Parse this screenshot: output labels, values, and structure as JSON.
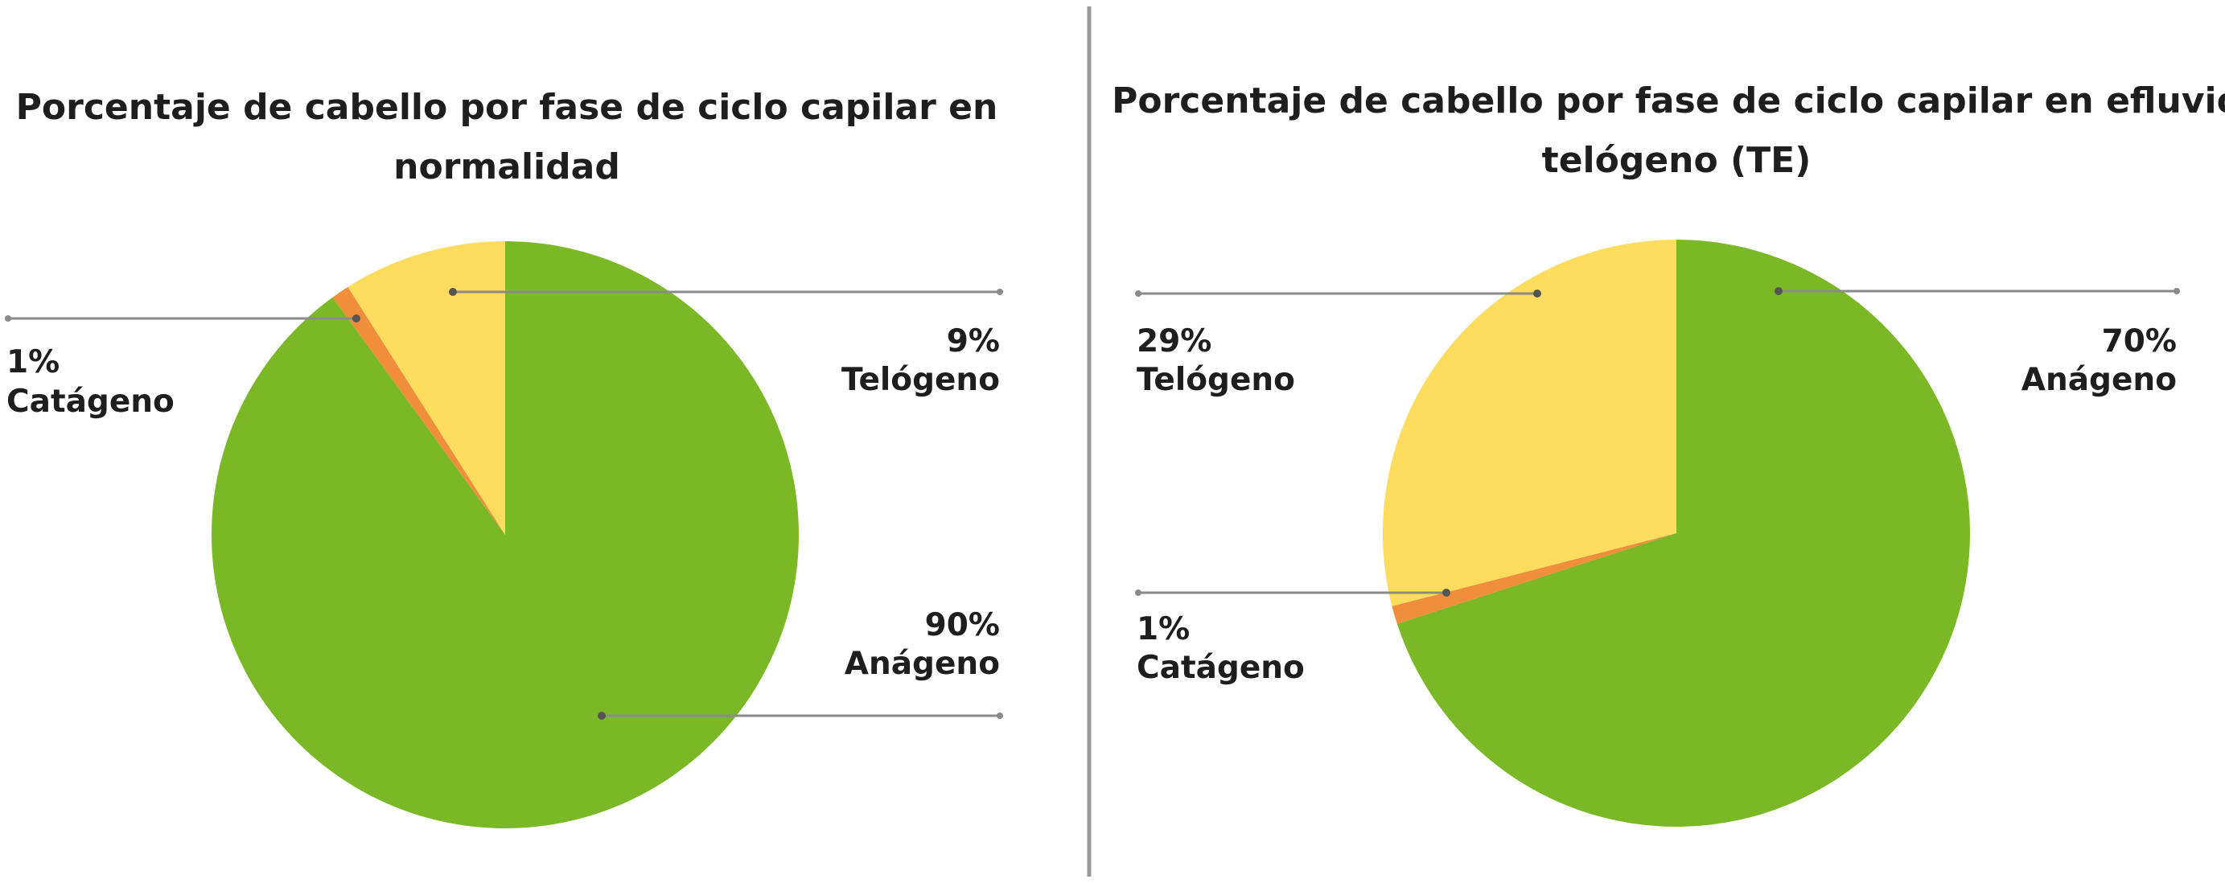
{
  "colors": {
    "anagen": "#7ab826",
    "catagen": "#f08e3c",
    "telogen": "#fedc5e",
    "leader": "#8a8a8a",
    "divider": "#999999",
    "text": "#1e1e1e"
  },
  "chart_data": [
    {
      "type": "pie",
      "title_lines": [
        "Porcentaje de cabello por fase de ciclo capilar en",
        "normalidad"
      ],
      "slices": [
        {
          "label": "Anágeno",
          "value": 90,
          "value_label": "90%",
          "color_key": "anagen"
        },
        {
          "label": "Catágeno",
          "value": 1,
          "value_label": "1%",
          "color_key": "catagen"
        },
        {
          "label": "Telógeno",
          "value": 9,
          "value_label": "9%",
          "color_key": "telogen"
        }
      ]
    },
    {
      "type": "pie",
      "title_lines": [
        "Porcentaje de cabello por fase de ciclo capilar en efluvio",
        "telógeno (TE)"
      ],
      "slices": [
        {
          "label": "Anágeno",
          "value": 70,
          "value_label": "70%",
          "color_key": "anagen"
        },
        {
          "label": "Catágeno",
          "value": 1,
          "value_label": "1%",
          "color_key": "catagen"
        },
        {
          "label": "Telógeno",
          "value": 29,
          "value_label": "29%",
          "color_key": "telogen"
        }
      ]
    }
  ]
}
